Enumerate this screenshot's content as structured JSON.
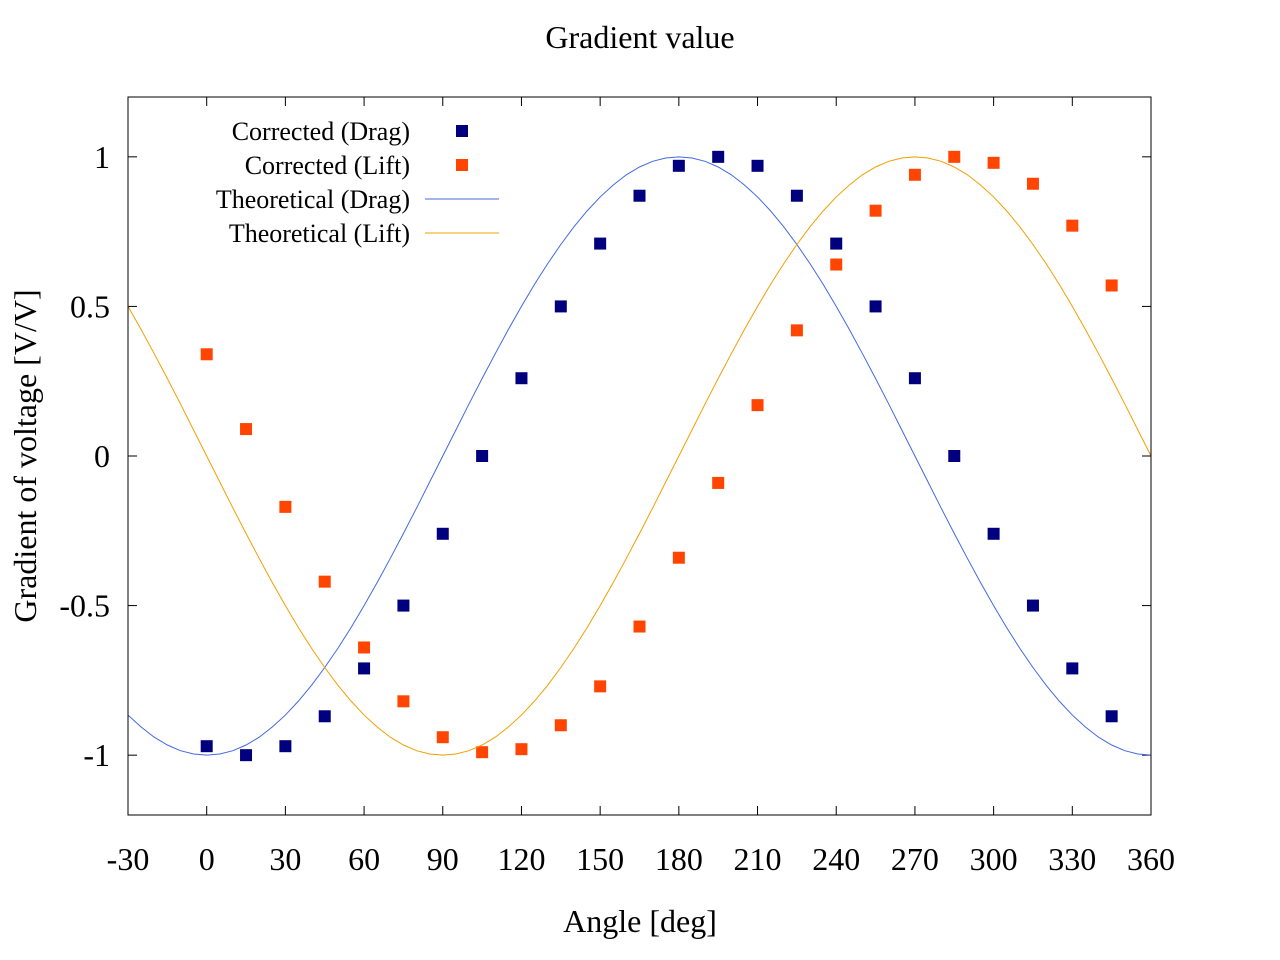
{
  "chart_data": {
    "type": "scatter",
    "title": "Gradient value",
    "xlabel": "Angle [deg]",
    "ylabel": "Gradient of voltage [V/V]",
    "xlim": [
      -30,
      360
    ],
    "ylim": [
      -1.2,
      1.2
    ],
    "x_ticks": [
      {
        "value": -30,
        "label": "-30"
      },
      {
        "value": 0,
        "label": "0"
      },
      {
        "value": 30,
        "label": "30"
      },
      {
        "value": 60,
        "label": "60"
      },
      {
        "value": 90,
        "label": "90"
      },
      {
        "value": 120,
        "label": "120"
      },
      {
        "value": 150,
        "label": "150"
      },
      {
        "value": 180,
        "label": "180"
      },
      {
        "value": 210,
        "label": "210"
      },
      {
        "value": 240,
        "label": "240"
      },
      {
        "value": 270,
        "label": "270"
      },
      {
        "value": 300,
        "label": "300"
      },
      {
        "value": 330,
        "label": "330"
      },
      {
        "value": 360,
        "label": "360"
      }
    ],
    "y_ticks": [
      {
        "value": -1,
        "label": "-1"
      },
      {
        "value": -0.5,
        "label": "-0.5"
      },
      {
        "value": 0,
        "label": "0"
      },
      {
        "value": 0.5,
        "label": "0.5"
      },
      {
        "value": 1,
        "label": "1"
      }
    ],
    "grid": false,
    "legend_position": "top-left",
    "series": [
      {
        "name": "Corrected (Drag)",
        "kind": "points",
        "color": "#00007f",
        "x": [
          0,
          15,
          30,
          45,
          60,
          75,
          90,
          105,
          120,
          135,
          150,
          165,
          180,
          195,
          210,
          225,
          240,
          255,
          270,
          285,
          300,
          315,
          330,
          345
        ],
        "y": [
          -0.97,
          -1.0,
          -0.97,
          -0.87,
          -0.71,
          -0.5,
          -0.26,
          0.0,
          0.26,
          0.5,
          0.71,
          0.87,
          0.97,
          1.0,
          0.97,
          0.87,
          0.71,
          0.5,
          0.26,
          0.0,
          -0.26,
          -0.5,
          -0.71,
          -0.87
        ]
      },
      {
        "name": "Corrected (Lift)",
        "kind": "points",
        "color": "#ff4500",
        "x": [
          0,
          15,
          30,
          45,
          60,
          75,
          90,
          105,
          120,
          135,
          150,
          165,
          180,
          195,
          210,
          225,
          240,
          255,
          270,
          285,
          300,
          315,
          330,
          345
        ],
        "y": [
          0.34,
          0.09,
          -0.17,
          -0.42,
          -0.64,
          -0.82,
          -0.94,
          -0.99,
          -0.98,
          -0.9,
          -0.77,
          -0.57,
          -0.34,
          -0.09,
          0.17,
          0.42,
          0.64,
          0.82,
          0.94,
          1.0,
          0.98,
          0.91,
          0.77,
          0.57
        ]
      },
      {
        "name": "Theoretical (Drag)",
        "kind": "line",
        "color": "#4169e1",
        "x": [
          -30,
          -25,
          -20,
          -15,
          -10,
          -5,
          0,
          5,
          10,
          15,
          20,
          25,
          30,
          35,
          40,
          45,
          50,
          55,
          60,
          65,
          70,
          75,
          80,
          85,
          90,
          95,
          100,
          105,
          110,
          115,
          120,
          125,
          130,
          135,
          140,
          145,
          150,
          155,
          160,
          165,
          170,
          175,
          180,
          185,
          190,
          195,
          200,
          205,
          210,
          215,
          220,
          225,
          230,
          235,
          240,
          245,
          250,
          255,
          260,
          265,
          270,
          275,
          280,
          285,
          290,
          295,
          300,
          305,
          310,
          315,
          320,
          325,
          330,
          335,
          340,
          345,
          350,
          355,
          360
        ],
        "y": [
          -0.866,
          -0.906,
          -0.94,
          -0.966,
          -0.985,
          -0.996,
          -1.0,
          -0.996,
          -0.985,
          -0.966,
          -0.94,
          -0.906,
          -0.866,
          -0.819,
          -0.766,
          -0.707,
          -0.643,
          -0.574,
          -0.5,
          -0.423,
          -0.342,
          -0.259,
          -0.174,
          -0.087,
          0.0,
          0.087,
          0.174,
          0.259,
          0.342,
          0.423,
          0.5,
          0.574,
          0.643,
          0.707,
          0.766,
          0.819,
          0.866,
          0.906,
          0.94,
          0.966,
          0.985,
          0.996,
          1.0,
          0.996,
          0.985,
          0.966,
          0.94,
          0.906,
          0.866,
          0.819,
          0.766,
          0.707,
          0.643,
          0.574,
          0.5,
          0.423,
          0.342,
          0.259,
          0.174,
          0.087,
          0.0,
          -0.087,
          -0.174,
          -0.259,
          -0.342,
          -0.423,
          -0.5,
          -0.574,
          -0.643,
          -0.707,
          -0.766,
          -0.819,
          -0.866,
          -0.906,
          -0.94,
          -0.966,
          -0.985,
          -0.996,
          -1.0
        ]
      },
      {
        "name": "Theoretical (Lift)",
        "kind": "line",
        "color": "#f0a000",
        "x": [
          -30,
          -25,
          -20,
          -15,
          -10,
          -5,
          0,
          5,
          10,
          15,
          20,
          25,
          30,
          35,
          40,
          45,
          50,
          55,
          60,
          65,
          70,
          75,
          80,
          85,
          90,
          95,
          100,
          105,
          110,
          115,
          120,
          125,
          130,
          135,
          140,
          145,
          150,
          155,
          160,
          165,
          170,
          175,
          180,
          185,
          190,
          195,
          200,
          205,
          210,
          215,
          220,
          225,
          230,
          235,
          240,
          245,
          250,
          255,
          260,
          265,
          270,
          275,
          280,
          285,
          290,
          295,
          300,
          305,
          310,
          315,
          320,
          325,
          330,
          335,
          340,
          345,
          350,
          355,
          360
        ],
        "y": [
          0.5,
          0.423,
          0.342,
          0.259,
          0.174,
          0.087,
          0.0,
          -0.087,
          -0.174,
          -0.259,
          -0.342,
          -0.423,
          -0.5,
          -0.574,
          -0.643,
          -0.707,
          -0.766,
          -0.819,
          -0.866,
          -0.906,
          -0.94,
          -0.966,
          -0.985,
          -0.996,
          -1.0,
          -0.996,
          -0.985,
          -0.966,
          -0.94,
          -0.906,
          -0.866,
          -0.819,
          -0.766,
          -0.707,
          -0.643,
          -0.574,
          -0.5,
          -0.423,
          -0.342,
          -0.259,
          -0.174,
          -0.087,
          0.0,
          0.087,
          0.174,
          0.259,
          0.342,
          0.423,
          0.5,
          0.574,
          0.643,
          0.707,
          0.766,
          0.819,
          0.866,
          0.906,
          0.94,
          0.966,
          0.985,
          0.996,
          1.0,
          0.996,
          0.985,
          0.966,
          0.94,
          0.906,
          0.866,
          0.819,
          0.766,
          0.707,
          0.643,
          0.574,
          0.5,
          0.423,
          0.342,
          0.259,
          0.174,
          0.087,
          0.0
        ]
      }
    ]
  }
}
